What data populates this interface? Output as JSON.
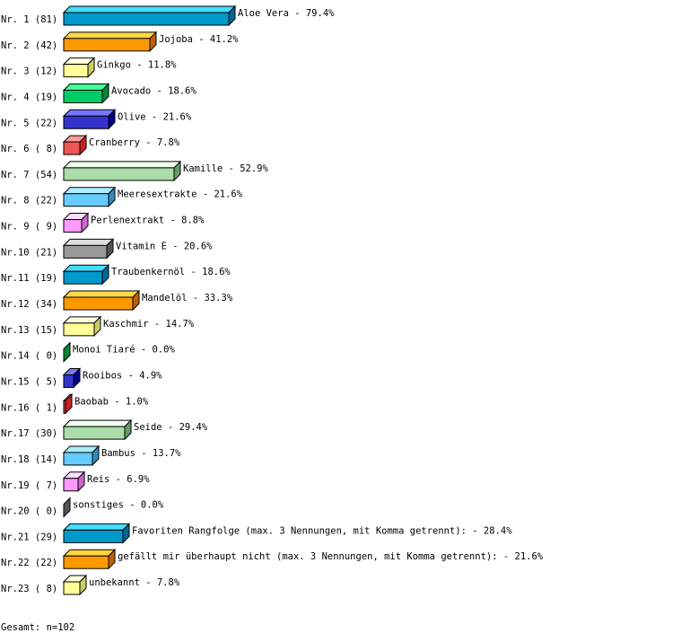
{
  "chart_data": {
    "type": "bar",
    "orientation": "horizontal",
    "style": "3d",
    "xlim": [
      0,
      100
    ],
    "unit": "%",
    "rows": [
      {
        "rank": "Nr. 1",
        "count": "(81)",
        "label": "Aloe Vera",
        "percent": 79.4
      },
      {
        "rank": "Nr. 2",
        "count": "(42)",
        "label": "Jojoba",
        "percent": 41.2
      },
      {
        "rank": "Nr. 3",
        "count": "(12)",
        "label": "Ginkgo",
        "percent": 11.8
      },
      {
        "rank": "Nr. 4",
        "count": "(19)",
        "label": "Avocado",
        "percent": 18.6
      },
      {
        "rank": "Nr. 5",
        "count": "(22)",
        "label": "Olive",
        "percent": 21.6
      },
      {
        "rank": "Nr. 6",
        "count": "( 8)",
        "label": "Cranberry",
        "percent": 7.8
      },
      {
        "rank": "Nr. 7",
        "count": "(54)",
        "label": "Kamille",
        "percent": 52.9
      },
      {
        "rank": "Nr. 8",
        "count": "(22)",
        "label": "Meeresextrakte",
        "percent": 21.6
      },
      {
        "rank": "Nr. 9",
        "count": "( 9)",
        "label": "Perlenextrakt",
        "percent": 8.8
      },
      {
        "rank": "Nr.10",
        "count": "(21)",
        "label": "Vitamin E",
        "percent": 20.6
      },
      {
        "rank": "Nr.11",
        "count": "(19)",
        "label": "Traubenkernöl",
        "percent": 18.6
      },
      {
        "rank": "Nr.12",
        "count": "(34)",
        "label": "Mandelöl",
        "percent": 33.3
      },
      {
        "rank": "Nr.13",
        "count": "(15)",
        "label": "Kaschmir",
        "percent": 14.7
      },
      {
        "rank": "Nr.14",
        "count": "( 0)",
        "label": "Monoi Tiaré",
        "percent": 0.0
      },
      {
        "rank": "Nr.15",
        "count": "( 5)",
        "label": "Rooibos",
        "percent": 4.9
      },
      {
        "rank": "Nr.16",
        "count": "( 1)",
        "label": "Baobab",
        "percent": 1.0
      },
      {
        "rank": "Nr.17",
        "count": "(30)",
        "label": "Seide",
        "percent": 29.4
      },
      {
        "rank": "Nr.18",
        "count": "(14)",
        "label": "Bambus",
        "percent": 13.7
      },
      {
        "rank": "Nr.19",
        "count": "( 7)",
        "label": "Reis",
        "percent": 6.9
      },
      {
        "rank": "Nr.20",
        "count": "( 0)",
        "label": "sonstiges",
        "percent": 0.0
      },
      {
        "rank": "Nr.21",
        "count": "(29)",
        "label": "Favoriten Rangfolge (max. 3 Nennungen, mit Komma getrennt):",
        "percent": 28.4
      },
      {
        "rank": "Nr.22",
        "count": "(22)",
        "label": "gefällt mir überhaupt nicht (max. 3 Nennungen, mit Komma getrennt):",
        "percent": 21.6
      },
      {
        "rank": "Nr.23",
        "count": "( 8)",
        "label": "unbekannt",
        "percent": 7.8
      }
    ],
    "palette": [
      {
        "front": "#0099cc",
        "top": "#44ddff",
        "side": "#006699"
      },
      {
        "front": "#ff9900",
        "top": "#ffd740",
        "side": "#c05f00"
      },
      {
        "front": "#ffff99",
        "top": "#ffffdd",
        "side": "#cccc66"
      },
      {
        "front": "#00cc66",
        "top": "#44ff99",
        "side": "#008833"
      },
      {
        "front": "#3333cc",
        "top": "#7777ff",
        "side": "#000088"
      },
      {
        "front": "#ee5555",
        "top": "#ff9999",
        "side": "#cc2222"
      },
      {
        "front": "#aaddaa",
        "top": "#eeffee",
        "side": "#669966"
      },
      {
        "front": "#66ccff",
        "top": "#aaeeff",
        "side": "#3388bb"
      },
      {
        "front": "#ff99ff",
        "top": "#ffddff",
        "side": "#cc66cc"
      },
      {
        "front": "#999999",
        "top": "#dddddd",
        "side": "#555555"
      }
    ],
    "footer": "Gesamt: n=102"
  }
}
